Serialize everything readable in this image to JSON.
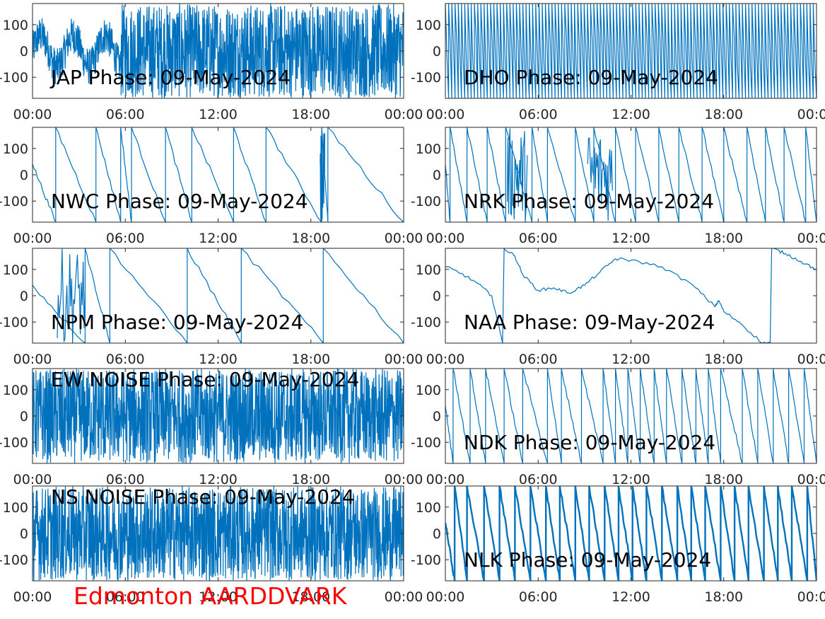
{
  "figure": {
    "footer_text": "Edmonton AARDDVARK",
    "footer_color": "#ff0000",
    "line_color": "#0072bd"
  },
  "chart_data": [
    {
      "type": "line",
      "title": "JAP Phase: 09-May-2024",
      "x_ticks": [
        "00:00",
        "06:00",
        "12:00",
        "18:00",
        "00:00"
      ],
      "y_ticks": [
        "100",
        "0",
        "-100"
      ],
      "ylim": [
        -180,
        180
      ],
      "xlim": [
        "00:00",
        "24:00"
      ],
      "pattern": "noise",
      "noise_start_hours": 5.7,
      "series": [
        {
          "x": [
            0,
            24
          ]
        }
      ]
    },
    {
      "type": "line",
      "title": "DHO Phase: 09-May-2024",
      "x_ticks": [
        "00:00",
        "06:00",
        "12:00",
        "18:00",
        "00:00"
      ],
      "y_ticks": [
        "100",
        "0",
        "-100"
      ],
      "ylim": [
        -180,
        180
      ],
      "xlim": [
        "00:00",
        "24:00"
      ],
      "pattern": "dense-wrap",
      "wraps_per_day": 115,
      "series": [
        {
          "x": [
            0,
            24
          ]
        }
      ]
    },
    {
      "type": "line",
      "title": "NWC Phase: 09-May-2024",
      "x_ticks": [
        "00:00",
        "06:00",
        "12:00",
        "18:00",
        "00:00"
      ],
      "y_ticks": [
        "100",
        "0",
        "-100"
      ],
      "ylim": [
        -180,
        180
      ],
      "xlim": [
        "00:00",
        "24:00"
      ],
      "pattern": "sawtooth",
      "wrap_hours": [
        1.5,
        4.1,
        5.7,
        6.4,
        8.6,
        10.3,
        13.0,
        15.1,
        18.7,
        19.1
      ],
      "noise_bands_hours": [
        [
          18.6,
          18.9
        ]
      ],
      "series": [
        {
          "x": [
            0,
            24
          ]
        }
      ]
    },
    {
      "type": "line",
      "title": "NRK Phase: 09-May-2024",
      "x_ticks": [
        "00:00",
        "06:00",
        "12:00",
        "18:00",
        "00:00"
      ],
      "y_ticks": [
        "100",
        "0",
        "-100"
      ],
      "ylim": [
        -180,
        180
      ],
      "xlim": [
        "00:00",
        "24:00"
      ],
      "pattern": "sawtooth",
      "wrap_hours": [
        0.3,
        1.4,
        2.7,
        3.9,
        5.6,
        6.6,
        8.4,
        9.6,
        11.0,
        12.3,
        13.8,
        15.1,
        16.6,
        18.0,
        19.5,
        20.7,
        21.9,
        23.3
      ],
      "noise_bands_hours": [
        [
          4.0,
          5.3
        ],
        [
          9.2,
          10.8
        ]
      ],
      "series": [
        {
          "x": [
            0,
            24
          ]
        }
      ]
    },
    {
      "type": "line",
      "title": "NPM Phase: 09-May-2024",
      "x_ticks": [
        "00:00",
        "06:00",
        "12:00",
        "18:00",
        "00:00"
      ],
      "y_ticks": [
        "100",
        "0",
        "-100"
      ],
      "ylim": [
        -180,
        180
      ],
      "xlim": [
        "00:00",
        "24:00"
      ],
      "pattern": "sawtooth",
      "wrap_hours": [
        3.4,
        5.0,
        10.0,
        13.5,
        18.8
      ],
      "noise_bands_hours": [
        [
          1.6,
          3.4
        ]
      ],
      "series": [
        {
          "x": [
            0,
            24
          ]
        }
      ]
    },
    {
      "type": "line",
      "title": "NAA Phase: 09-May-2024",
      "x_ticks": [
        "00:00",
        "06:00",
        "12:00",
        "18:00",
        "00:00"
      ],
      "y_ticks": [
        "100",
        "0",
        "-100"
      ],
      "ylim": [
        -180,
        180
      ],
      "xlim": [
        "00:00",
        "24:00"
      ],
      "pattern": "path",
      "series": [
        {
          "x": [
            0,
            1,
            2,
            3,
            3.7,
            3.8,
            4.5,
            5,
            6,
            7,
            8,
            9,
            10,
            11,
            12,
            14,
            16,
            17.4,
            17.7,
            18,
            19,
            20.5,
            21,
            21.1,
            22,
            23,
            24
          ],
          "y": [
            110,
            85,
            50,
            0,
            -180,
            180,
            150,
            80,
            20,
            30,
            10,
            40,
            90,
            140,
            135,
            110,
            40,
            -40,
            -20,
            -60,
            -100,
            -180,
            -180,
            180,
            160,
            130,
            100
          ]
        }
      ]
    },
    {
      "type": "line",
      "title": "EW NOISE Phase: 09-May-2024",
      "x_ticks": [
        "00:00",
        "06:00",
        "12:00",
        "18:00",
        "00:00"
      ],
      "y_ticks": [
        "100",
        "0",
        "-100"
      ],
      "ylim": [
        -180,
        180
      ],
      "xlim": [
        "00:00",
        "24:00"
      ],
      "pattern": "noise",
      "noise_start_hours": 0,
      "series": [
        {
          "x": [
            0,
            24
          ]
        }
      ]
    },
    {
      "type": "line",
      "title": "NDK Phase: 09-May-2024",
      "x_ticks": [
        "00:00",
        "06:00",
        "12:00",
        "18:00",
        "00:00"
      ],
      "y_ticks": [
        "100",
        "0",
        "-100"
      ],
      "ylim": [
        -180,
        180
      ],
      "xlim": [
        "00:00",
        "24:00"
      ],
      "pattern": "sawtooth",
      "wrap_hours": [
        0.5,
        1.6,
        2.6,
        3.8,
        5.0,
        6.6,
        7.5,
        8.8,
        10.2,
        11.0,
        11.8,
        12.6,
        13.5,
        14.3,
        15.3,
        16.2,
        17.0,
        17.8,
        19.2,
        20.2,
        21.2,
        22.2,
        23.2
      ],
      "noise_bands_hours": [],
      "series": [
        {
          "x": [
            0,
            24
          ]
        }
      ]
    },
    {
      "type": "line",
      "title": "NS NOISE Phase: 09-May-2024",
      "x_ticks": [
        "00:00",
        "06:00",
        "12:00",
        "18:00",
        "00:00"
      ],
      "y_ticks": [
        "100",
        "0",
        "-100"
      ],
      "ylim": [
        -180,
        180
      ],
      "xlim": [
        "00:00",
        "24:00"
      ],
      "pattern": "noise",
      "noise_start_hours": 0,
      "series": [
        {
          "x": [
            0,
            24
          ]
        }
      ]
    },
    {
      "type": "line",
      "title": "NLK Phase: 09-May-2024",
      "x_ticks": [
        "00:00",
        "06:00",
        "12:00",
        "18:00",
        "00:00"
      ],
      "y_ticks": [
        "100",
        "0",
        "-100"
      ],
      "ylim": [
        -180,
        180
      ],
      "xlim": [
        "00:00",
        "24:00"
      ],
      "pattern": "sawtooth",
      "wrap_hours": [
        0.6,
        1.4,
        2.5,
        3.5,
        4.5,
        5.5,
        6.5,
        7.4,
        8.4,
        9.3,
        10.3,
        11.2,
        12.1,
        13.0,
        14.0,
        15.0,
        15.9,
        16.8,
        17.8,
        18.7,
        19.6,
        20.6,
        21.5,
        22.4,
        23.4
      ],
      "noise_bands_hours": [],
      "thick": true,
      "series": [
        {
          "x": [
            0,
            24
          ]
        }
      ]
    }
  ]
}
